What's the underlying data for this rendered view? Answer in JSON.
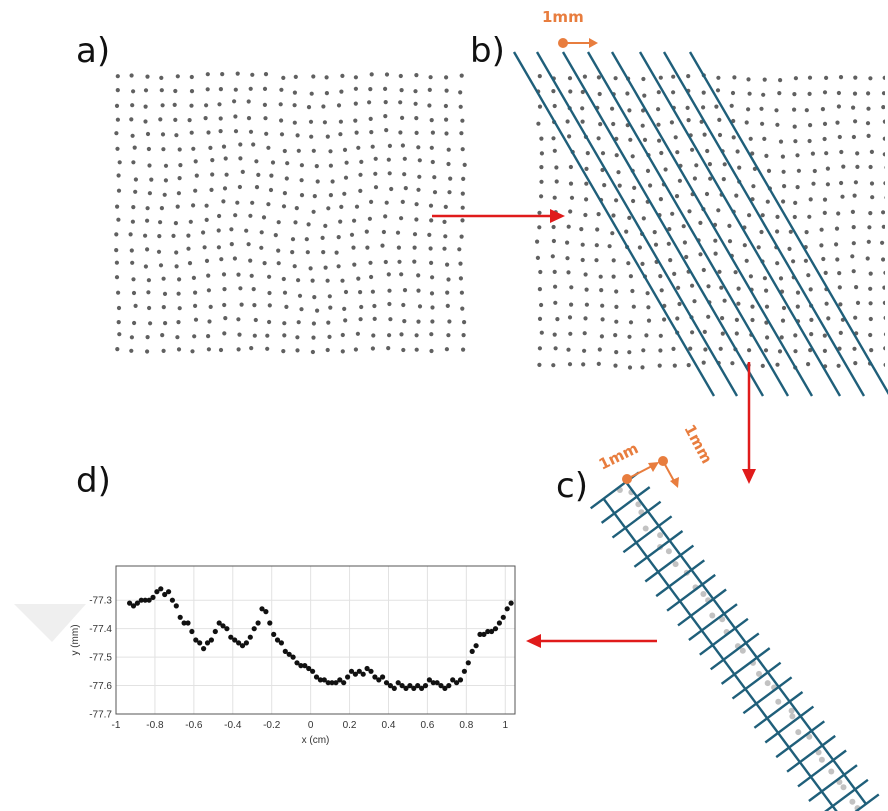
{
  "panels": {
    "a": "a)",
    "b": "b)",
    "c": "c)",
    "d": "d)"
  },
  "annotations": {
    "b_spacing": "1mm",
    "c_spacing_1": "1mm",
    "c_spacing_2": "1mm"
  },
  "colors": {
    "line": "#1f5f7a",
    "accent": "#e87d3e",
    "arrow": "#e01b1b",
    "dot": "#333333"
  },
  "chart_data": {
    "type": "scatter",
    "xlabel": "x (cm)",
    "ylabel": "y (mm)",
    "xlim": [
      -1,
      1.05
    ],
    "ylim": [
      -77.7,
      -77.25
    ],
    "xticks": [
      "-1",
      "-0.8",
      "-0.6",
      "-0.4",
      "-0.2",
      "0",
      "0.2",
      "0.4",
      "0.6",
      "0.8",
      "1"
    ],
    "yticks": [
      "-77.3",
      "-77.4",
      "-77.5",
      "-77.6",
      "-77.7"
    ],
    "grid": true,
    "points": [
      [
        -0.93,
        -77.31
      ],
      [
        -0.91,
        -77.32
      ],
      [
        -0.89,
        -77.31
      ],
      [
        -0.87,
        -77.3
      ],
      [
        -0.85,
        -77.3
      ],
      [
        -0.83,
        -77.3
      ],
      [
        -0.81,
        -77.29
      ],
      [
        -0.79,
        -77.27
      ],
      [
        -0.77,
        -77.26
      ],
      [
        -0.75,
        -77.28
      ],
      [
        -0.73,
        -77.27
      ],
      [
        -0.71,
        -77.3
      ],
      [
        -0.69,
        -77.32
      ],
      [
        -0.67,
        -77.36
      ],
      [
        -0.65,
        -77.38
      ],
      [
        -0.63,
        -77.38
      ],
      [
        -0.61,
        -77.41
      ],
      [
        -0.59,
        -77.44
      ],
      [
        -0.57,
        -77.45
      ],
      [
        -0.55,
        -77.47
      ],
      [
        -0.53,
        -77.45
      ],
      [
        -0.51,
        -77.44
      ],
      [
        -0.49,
        -77.41
      ],
      [
        -0.47,
        -77.38
      ],
      [
        -0.45,
        -77.39
      ],
      [
        -0.43,
        -77.4
      ],
      [
        -0.41,
        -77.43
      ],
      [
        -0.39,
        -77.44
      ],
      [
        -0.37,
        -77.45
      ],
      [
        -0.35,
        -77.46
      ],
      [
        -0.33,
        -77.45
      ],
      [
        -0.31,
        -77.43
      ],
      [
        -0.29,
        -77.4
      ],
      [
        -0.27,
        -77.38
      ],
      [
        -0.25,
        -77.33
      ],
      [
        -0.23,
        -77.34
      ],
      [
        -0.21,
        -77.38
      ],
      [
        -0.19,
        -77.42
      ],
      [
        -0.17,
        -77.44
      ],
      [
        -0.15,
        -77.45
      ],
      [
        -0.13,
        -77.48
      ],
      [
        -0.11,
        -77.49
      ],
      [
        -0.09,
        -77.5
      ],
      [
        -0.07,
        -77.52
      ],
      [
        -0.05,
        -77.53
      ],
      [
        -0.03,
        -77.53
      ],
      [
        -0.01,
        -77.54
      ],
      [
        0.01,
        -77.55
      ],
      [
        0.03,
        -77.57
      ],
      [
        0.05,
        -77.58
      ],
      [
        0.07,
        -77.58
      ],
      [
        0.09,
        -77.59
      ],
      [
        0.11,
        -77.59
      ],
      [
        0.13,
        -77.59
      ],
      [
        0.15,
        -77.58
      ],
      [
        0.17,
        -77.59
      ],
      [
        0.19,
        -77.57
      ],
      [
        0.21,
        -77.55
      ],
      [
        0.23,
        -77.56
      ],
      [
        0.25,
        -77.55
      ],
      [
        0.27,
        -77.56
      ],
      [
        0.29,
        -77.54
      ],
      [
        0.31,
        -77.55
      ],
      [
        0.33,
        -77.57
      ],
      [
        0.35,
        -77.58
      ],
      [
        0.37,
        -77.57
      ],
      [
        0.39,
        -77.59
      ],
      [
        0.41,
        -77.6
      ],
      [
        0.43,
        -77.61
      ],
      [
        0.45,
        -77.59
      ],
      [
        0.47,
        -77.6
      ],
      [
        0.49,
        -77.61
      ],
      [
        0.51,
        -77.6
      ],
      [
        0.53,
        -77.61
      ],
      [
        0.55,
        -77.6
      ],
      [
        0.57,
        -77.61
      ],
      [
        0.59,
        -77.6
      ],
      [
        0.61,
        -77.58
      ],
      [
        0.63,
        -77.59
      ],
      [
        0.65,
        -77.59
      ],
      [
        0.67,
        -77.6
      ],
      [
        0.69,
        -77.61
      ],
      [
        0.71,
        -77.6
      ],
      [
        0.73,
        -77.58
      ],
      [
        0.75,
        -77.59
      ],
      [
        0.77,
        -77.58
      ],
      [
        0.79,
        -77.55
      ],
      [
        0.81,
        -77.52
      ],
      [
        0.83,
        -77.48
      ],
      [
        0.85,
        -77.46
      ],
      [
        0.87,
        -77.42
      ],
      [
        0.89,
        -77.42
      ],
      [
        0.91,
        -77.41
      ],
      [
        0.93,
        -77.41
      ],
      [
        0.95,
        -77.4
      ],
      [
        0.97,
        -77.38
      ],
      [
        0.99,
        -77.36
      ],
      [
        1.01,
        -77.33
      ],
      [
        1.03,
        -77.31
      ]
    ]
  }
}
